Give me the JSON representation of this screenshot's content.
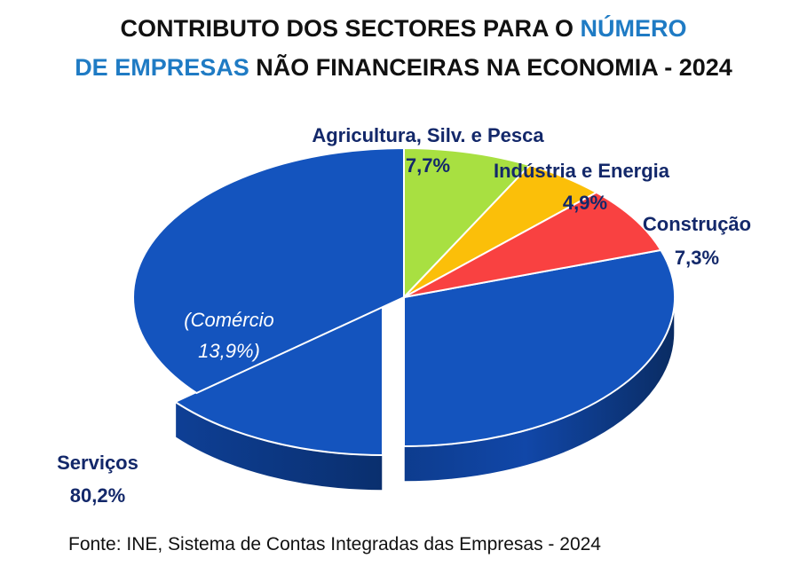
{
  "title": {
    "line1_part1": "CONTRIBUTO DOS SECTORES PARA O ",
    "line1_highlight": "NÚMERO",
    "line2_highlight": "DE EMPRESAS",
    "line2_part2": " NÃO FINANCEIRAS NA ECONOMIA - 2024",
    "highlight_color": "#1f7bc4"
  },
  "chart_data": {
    "type": "pie",
    "style": "3d-exploded",
    "categories": [
      "Agricultura, Silv. e Pesca",
      "Indústria e Energia",
      "Construção",
      "Serviços"
    ],
    "values": [
      7.7,
      4.9,
      7.3,
      80.2
    ],
    "value_labels": [
      "7,7%",
      "4,9%",
      "7,3%",
      "80,2%"
    ],
    "unit": "%",
    "colors": [
      "#a8e041",
      "#fbbf09",
      "#f94141",
      "#1454be"
    ],
    "sub_slice": {
      "parent": "Serviços",
      "label": "(Comércio",
      "value": 13.9,
      "value_label": "13,9%)",
      "exploded": true
    }
  },
  "source": "Fonte: INE, Sistema de Contas Integradas das Empresas - 2024"
}
